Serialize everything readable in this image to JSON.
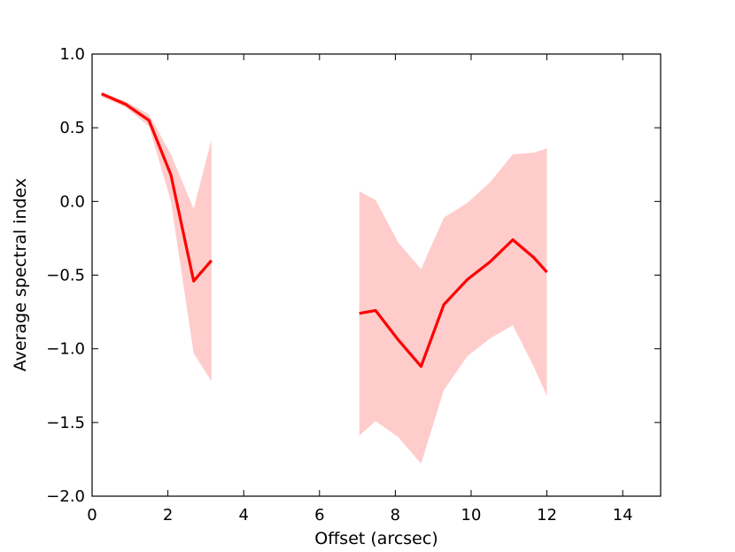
{
  "chart_data": {
    "type": "line",
    "title": "",
    "xlabel": "Offset (arcsec)",
    "ylabel": "Average spectral index",
    "xlim": [
      0,
      15
    ],
    "ylim": [
      -2.0,
      1.0
    ],
    "x_ticks": [
      0,
      2,
      4,
      6,
      8,
      10,
      12,
      14
    ],
    "x_tick_labels": [
      "0",
      "2",
      "4",
      "6",
      "8",
      "10",
      "12",
      "14"
    ],
    "y_ticks": [
      1.0,
      0.5,
      0.0,
      -0.5,
      -1.0,
      -1.5,
      -2.0
    ],
    "y_tick_labels": [
      "1.0",
      "0.5",
      "0.0",
      "−0.5",
      "−1.0",
      "−1.5",
      "−2.0"
    ],
    "grid": false,
    "legend": "none",
    "colors": {
      "line": "#ff0000",
      "band": "#ffcccc",
      "axes": "#000000"
    },
    "series": [
      {
        "segments": [
          {
            "x": [
              0.25,
              0.88,
              1.5,
              2.08,
              2.68,
              3.15
            ],
            "y": [
              0.73,
              0.66,
              0.55,
              0.18,
              -0.54,
              -0.4
            ],
            "upper": [
              0.74,
              0.68,
              0.59,
              0.32,
              -0.05,
              0.42
            ],
            "lower": [
              0.71,
              0.64,
              0.51,
              0.0,
              -1.03,
              -1.22
            ]
          },
          {
            "x": [
              7.05,
              7.48,
              8.08,
              8.68,
              9.28,
              9.9,
              10.5,
              11.1,
              11.65,
              12.0
            ],
            "y": [
              -0.76,
              -0.74,
              -0.94,
              -1.12,
              -0.7,
              -0.53,
              -0.41,
              -0.26,
              -0.38,
              -0.48
            ],
            "upper": [
              0.07,
              0.01,
              -0.28,
              -0.46,
              -0.11,
              -0.01,
              0.13,
              0.32,
              0.33,
              0.36
            ],
            "lower": [
              -1.59,
              -1.49,
              -1.6,
              -1.78,
              -1.28,
              -1.05,
              -0.93,
              -0.84,
              -1.12,
              -1.32
            ]
          }
        ]
      }
    ]
  }
}
